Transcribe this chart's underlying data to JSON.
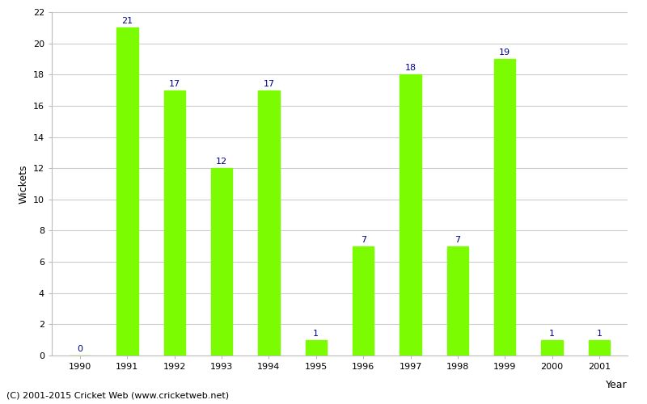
{
  "years": [
    1990,
    1991,
    1992,
    1993,
    1994,
    1995,
    1996,
    1997,
    1998,
    1999,
    2000,
    2001
  ],
  "wickets": [
    0,
    21,
    17,
    12,
    17,
    1,
    7,
    18,
    7,
    19,
    1,
    1
  ],
  "bar_color": "#7CFC00",
  "bar_edge_color": "#7CFC00",
  "label_color": "#00008B",
  "ylabel": "Wickets",
  "xlabel_right": "Year",
  "ylim": [
    0,
    22
  ],
  "yticks": [
    0,
    2,
    4,
    6,
    8,
    10,
    12,
    14,
    16,
    18,
    20,
    22
  ],
  "background_color": "#ffffff",
  "grid_color": "#cccccc",
  "label_fontsize": 8,
  "axis_label_fontsize": 9,
  "tick_fontsize": 8,
  "footer_text": "(C) 2001-2015 Cricket Web (www.cricketweb.net)",
  "footer_fontsize": 8,
  "bar_width": 0.45
}
